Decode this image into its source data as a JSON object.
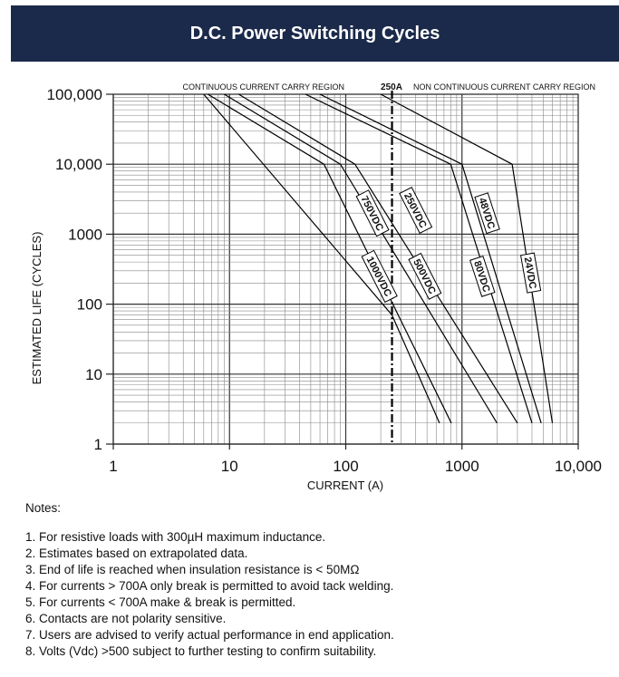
{
  "header": {
    "title": "D.C. Power Switching Cycles"
  },
  "chart_data": {
    "type": "line",
    "title": "D.C. Power Switching Cycles",
    "xlabel": "CURRENT (A)",
    "ylabel": "ESTIMATED LIFE (CYCLES)",
    "x_scale": "log",
    "y_scale": "log",
    "xlim": [
      1,
      10000
    ],
    "ylim": [
      1,
      100000
    ],
    "x_ticks": [
      {
        "value": 1,
        "label": "1"
      },
      {
        "value": 10,
        "label": "10"
      },
      {
        "value": 100,
        "label": "100"
      },
      {
        "value": 1000,
        "label": "1000"
      },
      {
        "value": 10000,
        "label": "10,000"
      }
    ],
    "y_ticks": [
      {
        "value": 1,
        "label": "1"
      },
      {
        "value": 10,
        "label": "10"
      },
      {
        "value": 100,
        "label": "100"
      },
      {
        "value": 1000,
        "label": "1000"
      },
      {
        "value": 10000,
        "label": "10,000"
      },
      {
        "value": 100000,
        "label": "100,000"
      }
    ],
    "grid": true,
    "reference_line": {
      "x": 250,
      "label": "250A",
      "style": "dash-dot"
    },
    "regions": {
      "left": "CONTINUOUS CURRENT CARRY REGION",
      "right": "NON CONTINUOUS CURRENT CARRY REGION"
    },
    "series": [
      {
        "name": "1000VDC",
        "points": [
          [
            6,
            100000
          ],
          [
            250,
            70
          ],
          [
            640,
            2
          ]
        ]
      },
      {
        "name": "750VDC",
        "points": [
          [
            6.5,
            100000
          ],
          [
            65,
            10000
          ],
          [
            810,
            2
          ]
        ]
      },
      {
        "name": "500VDC",
        "points": [
          [
            9,
            100000
          ],
          [
            90,
            10000
          ],
          [
            2000,
            2
          ]
        ]
      },
      {
        "name": "250VDC",
        "points": [
          [
            12,
            100000
          ],
          [
            120,
            10000
          ],
          [
            3000,
            2
          ]
        ]
      },
      {
        "name": "80VDC",
        "points": [
          [
            45,
            100000
          ],
          [
            800,
            10000
          ],
          [
            4000,
            2
          ]
        ]
      },
      {
        "name": "48VDC",
        "points": [
          [
            60,
            100000
          ],
          [
            1000,
            10000
          ],
          [
            4800,
            2
          ]
        ]
      },
      {
        "name": "24VDC",
        "points": [
          [
            200,
            100000
          ],
          [
            2700,
            10000
          ],
          [
            6000,
            2
          ]
        ]
      }
    ]
  },
  "notes": {
    "title": "Notes:",
    "items": [
      "1. For resistive loads with 300µH maximum inductance.",
      "2. Estimates based on extrapolated data.",
      "3. End of life is reached when insulation resistance is < 50MΩ",
      "4. For currents > 700A only break is permitted to avoid tack welding.",
      "5. For currents < 700A make & break is permitted.",
      "6. Contacts are not polarity sensitive.",
      "7. Users are advised to verify actual performance in end application.",
      "8. Volts (Vdc) >500 subject to further testing to confirm suitability."
    ]
  }
}
